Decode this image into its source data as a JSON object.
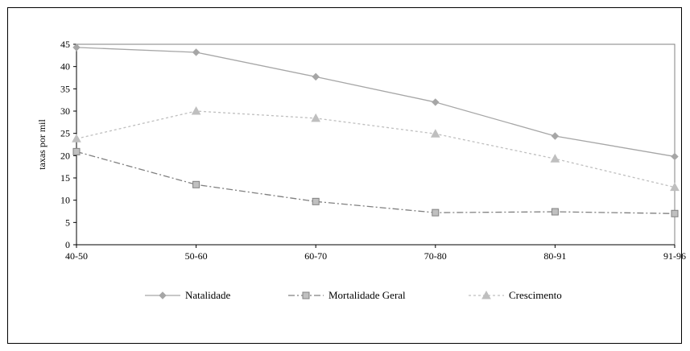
{
  "chart_data": {
    "type": "line",
    "categories": [
      "40-50",
      "50-60",
      "60-70",
      "70-80",
      "80-91",
      "91-96"
    ],
    "ylabel": "taxas por mil",
    "xlabel": "",
    "ylim": [
      0,
      45
    ],
    "yticks": [
      0,
      5,
      10,
      15,
      20,
      25,
      30,
      35,
      40,
      45
    ],
    "grid": false,
    "legend_position": "bottom",
    "series": [
      {
        "name": "Natalidade",
        "values": [
          44.3,
          43.2,
          37.7,
          32.0,
          24.4,
          19.8
        ],
        "color": "#a6a6a6",
        "dash": "solid",
        "marker": "diamond"
      },
      {
        "name": "Mortalidade Geral",
        "values": [
          20.9,
          13.5,
          9.7,
          7.2,
          7.4,
          7.0
        ],
        "color": "#808080",
        "dash": "dashdot",
        "marker": "square"
      },
      {
        "name": "Crescimento",
        "values": [
          23.8,
          30.0,
          28.4,
          24.9,
          19.3,
          12.9
        ],
        "color": "#bfbfbf",
        "dash": "dotted",
        "marker": "triangle"
      }
    ]
  }
}
